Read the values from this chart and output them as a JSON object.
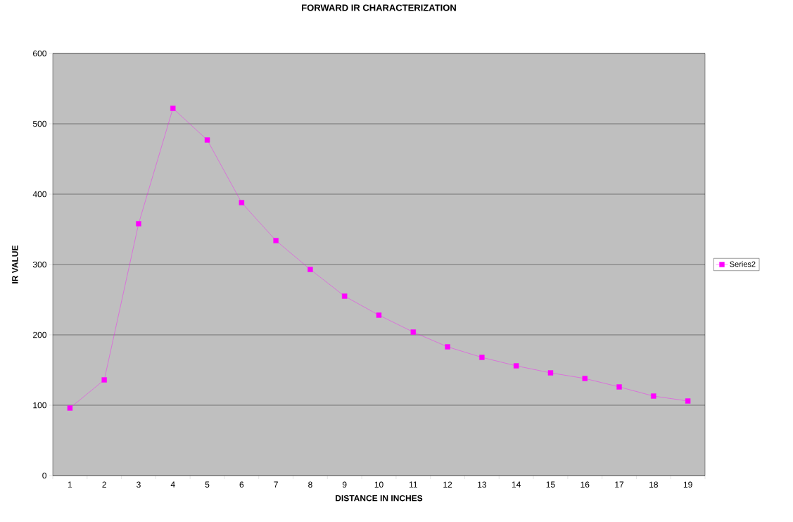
{
  "chart_data": {
    "type": "line",
    "title": "FORWARD IR CHARACTERIZATION",
    "xlabel": "DISTANCE IN INCHES",
    "ylabel": "IR VALUE",
    "categories": [
      "1",
      "2",
      "3",
      "4",
      "5",
      "6",
      "7",
      "8",
      "9",
      "10",
      "11",
      "12",
      "13",
      "14",
      "15",
      "16",
      "17",
      "18",
      "19"
    ],
    "series": [
      {
        "name": "Series2",
        "color": "#ff00ff",
        "values": [
          96,
          136,
          358,
          522,
          477,
          388,
          334,
          293,
          255,
          228,
          204,
          183,
          168,
          156,
          146,
          138,
          126,
          113,
          106
        ]
      }
    ],
    "ylim": [
      0,
      600
    ],
    "yticks": [
      0,
      100,
      200,
      300,
      400,
      500,
      600
    ],
    "grid": "y",
    "legend": "right",
    "marker": "square",
    "line_style": "solid"
  }
}
